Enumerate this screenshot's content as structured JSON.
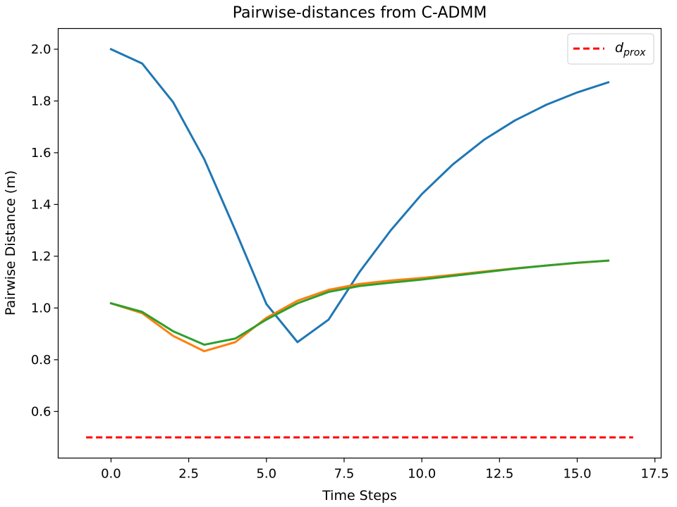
{
  "chart_data": {
    "type": "line",
    "title": "Pairwise-distances from C-ADMM",
    "xlabel": "Time Steps",
    "ylabel": "Pairwise Distance (m)",
    "xlim": [
      -1.7,
      17.7
    ],
    "ylim": [
      0.42,
      2.08
    ],
    "xticks": [
      0.0,
      2.5,
      5.0,
      7.5,
      10.0,
      12.5,
      15.0,
      17.5
    ],
    "xtick_labels": [
      "0.0",
      "2.5",
      "5.0",
      "7.5",
      "10.0",
      "12.5",
      "15.0",
      "17.5"
    ],
    "yticks": [
      0.6,
      0.8,
      1.0,
      1.2,
      1.4,
      1.6,
      1.8,
      2.0
    ],
    "ytick_labels": [
      "0.6",
      "0.8",
      "1.0",
      "1.2",
      "1.4",
      "1.6",
      "1.8",
      "2.0"
    ],
    "grid": false,
    "legend_position": "upper-right",
    "x": [
      0,
      1,
      2,
      3,
      4,
      5,
      6,
      7,
      8,
      9,
      10,
      11,
      12,
      13,
      14,
      15,
      16
    ],
    "series": [
      {
        "color": "#1f77b4",
        "values": [
          2.0,
          1.945,
          1.795,
          1.575,
          1.3,
          1.015,
          0.868,
          0.955,
          1.14,
          1.3,
          1.44,
          1.555,
          1.65,
          1.725,
          1.785,
          1.833,
          1.872
        ]
      },
      {
        "color": "#ff7f0e",
        "values": [
          1.018,
          0.98,
          0.892,
          0.833,
          0.868,
          0.962,
          1.028,
          1.07,
          1.093,
          1.106,
          1.116,
          1.128,
          1.141,
          1.153,
          1.164,
          1.174,
          1.183
        ]
      },
      {
        "color": "#2ca02c",
        "values": [
          1.018,
          0.985,
          0.91,
          0.858,
          0.882,
          0.955,
          1.018,
          1.062,
          1.085,
          1.098,
          1.11,
          1.124,
          1.138,
          1.152,
          1.164,
          1.175,
          1.183
        ]
      }
    ],
    "reference_line": {
      "label_main": "d",
      "label_sub": "prox",
      "y": 0.5,
      "x_range": [
        -0.8,
        16.8
      ],
      "color": "#ff0000",
      "style": "dashed"
    }
  }
}
